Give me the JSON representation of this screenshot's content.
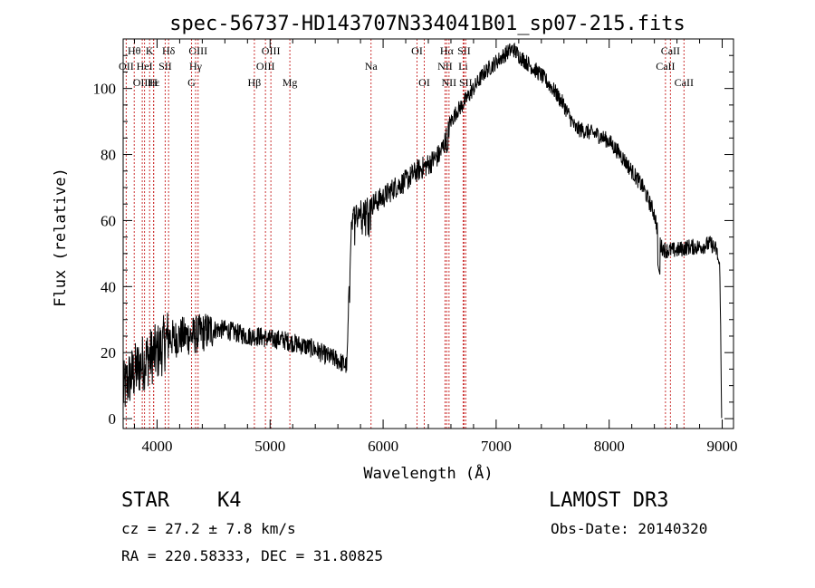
{
  "chart_data": {
    "type": "line",
    "title": "spec-56737-HD143707N334041B01_sp07-215.fits",
    "xlabel": "Wavelength (Å)",
    "ylabel": "Flux (relative)",
    "xlim": [
      3700,
      9100
    ],
    "ylim": [
      -3,
      115
    ],
    "x_ticks": [
      4000,
      5000,
      6000,
      7000,
      8000,
      9000
    ],
    "y_ticks": [
      0,
      20,
      40,
      60,
      80,
      100
    ],
    "series": [
      {
        "name": "flux",
        "x": [
          3700,
          3750,
          3800,
          3850,
          3900,
          3950,
          4000,
          4050,
          4100,
          4150,
          4200,
          4300,
          4400,
          4500,
          4600,
          4700,
          4800,
          4900,
          5000,
          5100,
          5200,
          5300,
          5400,
          5500,
          5580,
          5630,
          5680,
          5700,
          5720,
          5750,
          5800,
          5850,
          5900,
          6000,
          6100,
          6200,
          6300,
          6400,
          6500,
          6550,
          6600,
          6650,
          6700,
          6800,
          6900,
          7000,
          7100,
          7150,
          7200,
          7300,
          7400,
          7500,
          7600,
          7700,
          7800,
          7900,
          8000,
          8100,
          8200,
          8300,
          8400,
          8440,
          8460,
          8500,
          8600,
          8700,
          8800,
          8900,
          8950,
          8980,
          8995
        ],
        "y": [
          8,
          12,
          14,
          16,
          18,
          19,
          20,
          22,
          25,
          24,
          25,
          25,
          26,
          27,
          27,
          26,
          25,
          25,
          24,
          24,
          23,
          22,
          21,
          19,
          18,
          17,
          16,
          40,
          60,
          62,
          63,
          64,
          65,
          67,
          70,
          72,
          75,
          77,
          80,
          84,
          90,
          93,
          95,
          100,
          105,
          108,
          111,
          112,
          110,
          107,
          104,
          100,
          95,
          88,
          87,
          86,
          84,
          80,
          75,
          70,
          62,
          55,
          52,
          51,
          51,
          52,
          52,
          53,
          51,
          45,
          0
        ]
      }
    ],
    "spectral_lines": [
      {
        "label": "Hθ",
        "x": 3798,
        "row": 0
      },
      {
        "label": "OII",
        "x": 3727,
        "row": 1
      },
      {
        "label": "OIII",
        "x": 3869,
        "row": 2
      },
      {
        "label": "K",
        "x": 3934,
        "row": 0
      },
      {
        "label": "HeI",
        "x": 3889,
        "row": 1
      },
      {
        "label": "Hε",
        "x": 3970,
        "row": 2
      },
      {
        "label": "H",
        "x": 3969,
        "row": 2
      },
      {
        "label": "Hδ",
        "x": 4102,
        "row": 0
      },
      {
        "label": "SII",
        "x": 4072,
        "row": 1
      },
      {
        "label": "OIII",
        "x": 4363,
        "row": 0
      },
      {
        "label": "Hγ",
        "x": 4341,
        "row": 1
      },
      {
        "label": "G",
        "x": 4305,
        "row": 2
      },
      {
        "label": "OIII",
        "x": 5007,
        "row": 0
      },
      {
        "label": "OIII",
        "x": 4959,
        "row": 1
      },
      {
        "label": "Hβ",
        "x": 4861,
        "row": 2
      },
      {
        "label": "Mg",
        "x": 5175,
        "row": 2
      },
      {
        "label": "Na",
        "x": 5893,
        "row": 1
      },
      {
        "label": "OI",
        "x": 6300,
        "row": 0
      },
      {
        "label": "OI",
        "x": 6364,
        "row": 2
      },
      {
        "label": "Hα",
        "x": 6563,
        "row": 0
      },
      {
        "label": "SII",
        "x": 6716,
        "row": 0
      },
      {
        "label": "NII",
        "x": 6548,
        "row": 1
      },
      {
        "label": "Li",
        "x": 6708,
        "row": 1
      },
      {
        "label": "NII",
        "x": 6583,
        "row": 2
      },
      {
        "label": "SII",
        "x": 6731,
        "row": 2
      },
      {
        "label": "CaII",
        "x": 8542,
        "row": 0
      },
      {
        "label": "CaII",
        "x": 8498,
        "row": 1
      },
      {
        "label": "CaII",
        "x": 8662,
        "row": 2
      }
    ]
  },
  "info": {
    "object_class": "STAR",
    "subclass": "K4",
    "survey": "LAMOST DR3",
    "redshift": "cz = 27.2 ± 7.8 km/s",
    "obs_date": "Obs-Date: 20140320",
    "coordinates": "RA = 220.58333, DEC =  31.80825"
  }
}
